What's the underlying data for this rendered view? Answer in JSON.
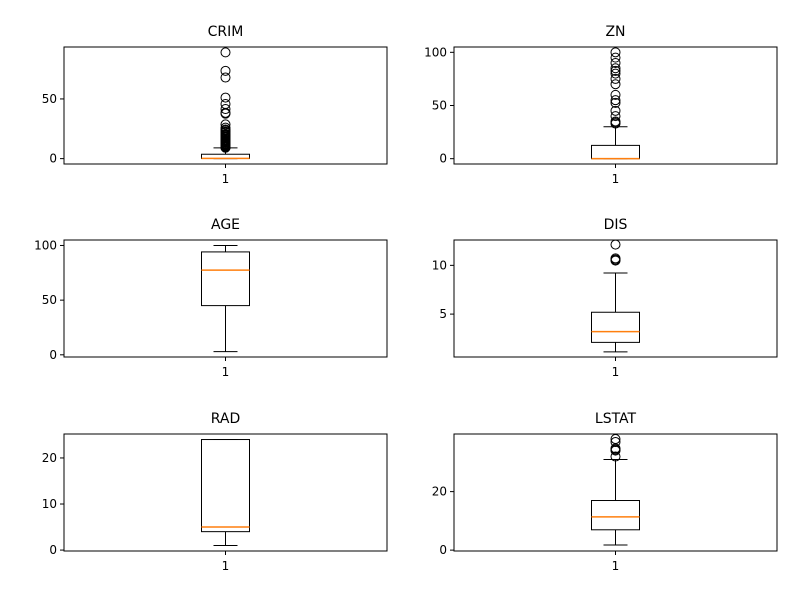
{
  "chart_data": [
    {
      "type": "boxplot",
      "title": "CRIM",
      "categories": [
        "1"
      ],
      "ylim": [
        -4.5,
        93.5
      ],
      "yticks": [
        0,
        50
      ],
      "box": {
        "whisker_low": 0.006,
        "q1": 0.08,
        "median": 0.26,
        "q3": 3.68,
        "whisker_high": 8.98
      },
      "outliers": [
        88.98,
        73.53,
        67.92,
        51.14,
        45.75,
        41.53,
        38.35,
        37.66,
        28.66,
        25.94,
        24.39,
        23.65,
        22.6,
        22.05,
        20.72,
        20.08,
        19.61,
        18.81,
        18.5,
        17.87,
        16.81,
        15.86,
        15.58,
        15.29,
        15.02,
        14.33,
        14.05,
        13.68,
        13.52,
        12.8,
        12.25,
        11.95,
        11.58,
        11.11,
        10.84,
        10.23,
        9.97,
        9.92,
        9.59,
        9.34,
        9.19
      ]
    },
    {
      "type": "boxplot",
      "title": "ZN",
      "categories": [
        "1"
      ],
      "ylim": [
        -5,
        105
      ],
      "yticks": [
        0,
        50,
        100
      ],
      "box": {
        "whisker_low": 0,
        "q1": 0,
        "median": 0,
        "q3": 12.5,
        "whisker_high": 30
      },
      "outliers": [
        100,
        95,
        90,
        85,
        82.5,
        80,
        75,
        70,
        60,
        55,
        52.5,
        45,
        40,
        35,
        34,
        33
      ]
    },
    {
      "type": "boxplot",
      "title": "AGE",
      "categories": [
        "1"
      ],
      "ylim": [
        -2,
        105
      ],
      "yticks": [
        0,
        50,
        100
      ],
      "box": {
        "whisker_low": 2.9,
        "q1": 45,
        "median": 77.5,
        "q3": 94.1,
        "whisker_high": 100
      },
      "outliers": []
    },
    {
      "type": "boxplot",
      "title": "DIS",
      "categories": [
        "1"
      ],
      "ylim": [
        0.6,
        12.6
      ],
      "yticks": [
        5,
        10
      ],
      "box": {
        "whisker_low": 1.13,
        "q1": 2.1,
        "median": 3.2,
        "q3": 5.19,
        "whisker_high": 9.22
      },
      "outliers": [
        12.13,
        10.71,
        10.59,
        10.59,
        10.49
      ]
    },
    {
      "type": "boxplot",
      "title": "RAD",
      "categories": [
        "1"
      ],
      "ylim": [
        -0.2,
        25.2
      ],
      "yticks": [
        0,
        10,
        20
      ],
      "box": {
        "whisker_low": 1,
        "q1": 4,
        "median": 5,
        "q3": 24,
        "whisker_high": 24
      },
      "outliers": []
    },
    {
      "type": "boxplot",
      "title": "LSTAT",
      "categories": [
        "1"
      ],
      "ylim": [
        -0.3,
        39.7
      ],
      "yticks": [
        0,
        20
      ],
      "box": {
        "whisker_low": 1.73,
        "q1": 6.95,
        "median": 11.36,
        "q3": 16.96,
        "whisker_high": 31
      },
      "outliers": [
        37.97,
        36.98,
        34.77,
        34.41,
        34.37,
        34.02,
        31.99
      ]
    }
  ],
  "colors": {
    "box": "#000000",
    "median": "#ff7f0e",
    "flier": "#000000",
    "background": "#ffffff"
  }
}
